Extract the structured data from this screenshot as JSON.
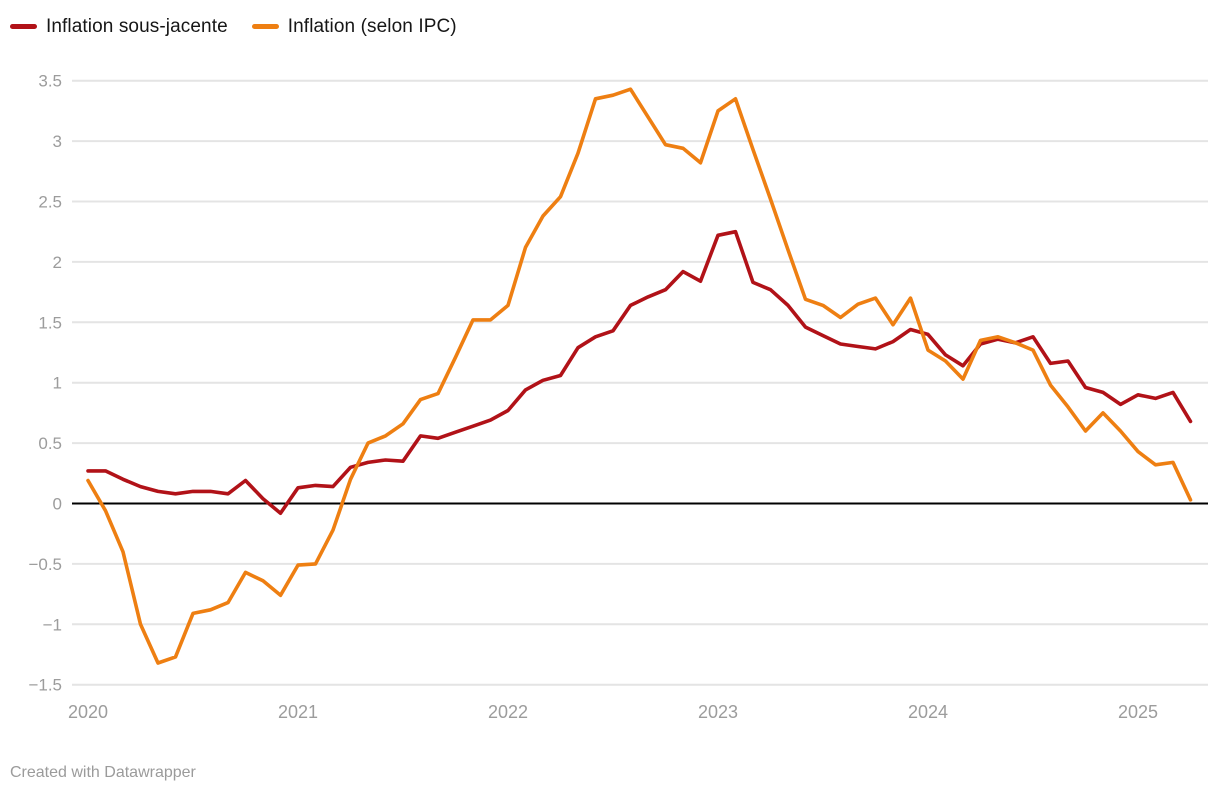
{
  "legend": [
    {
      "label": "Inflation sous-jacente",
      "color": "#B11218"
    },
    {
      "label": "Inflation (selon IPC)",
      "color": "#EE7F12"
    }
  ],
  "footer": {
    "text": "Created with Datawrapper"
  },
  "colors": {
    "grid": "#e4e4e4",
    "zero_line": "#000000",
    "tick_label": "#9c9c9c",
    "legend_text": "#161616",
    "footer_text": "#9b9b9b",
    "background": "#ffffff"
  },
  "chart_data": {
    "type": "line",
    "title": "",
    "xlabel": "",
    "ylabel": "",
    "grid": "horizontal",
    "zero_line": true,
    "legend_position": "top-left",
    "x_unit": "month",
    "x_start": "2020-01",
    "x_end": "2025-04",
    "x_tick_labels": [
      "2020",
      "2021",
      "2022",
      "2023",
      "2024",
      "2025"
    ],
    "x_tick_month_indices": [
      0,
      12,
      24,
      36,
      48,
      60
    ],
    "y_ticks": [
      3.5,
      3,
      2.5,
      2,
      1.5,
      1,
      0.5,
      0,
      -0.5,
      -1,
      -1.5
    ],
    "y_tick_labels": [
      "3.5",
      "3",
      "2.5",
      "2",
      "1.5",
      "1",
      "0.5",
      "0",
      "−0.5",
      "−1",
      "−1.5"
    ],
    "ylim": [
      -1.5,
      3.5
    ],
    "series": [
      {
        "name": "Inflation sous-jacente",
        "color": "#B11218",
        "values": [
          0.27,
          0.27,
          0.2,
          0.14,
          0.1,
          0.08,
          0.1,
          0.1,
          0.08,
          0.19,
          0.04,
          -0.08,
          0.13,
          0.15,
          0.14,
          0.3,
          0.34,
          0.36,
          0.35,
          0.56,
          0.54,
          0.59,
          0.64,
          0.69,
          0.77,
          0.94,
          1.02,
          1.06,
          1.29,
          1.38,
          1.43,
          1.64,
          1.71,
          1.77,
          1.92,
          1.84,
          2.22,
          2.25,
          1.83,
          1.77,
          1.64,
          1.46,
          1.39,
          1.32,
          1.3,
          1.28,
          1.34,
          1.44,
          1.4,
          1.23,
          1.14,
          1.32,
          1.36,
          1.33,
          1.38,
          1.16,
          1.18,
          0.96,
          0.92,
          0.82,
          0.9,
          0.87,
          0.92,
          0.68
        ]
      },
      {
        "name": "Inflation (selon IPC)",
        "color": "#EE7F12",
        "values": [
          0.19,
          -0.06,
          -0.4,
          -1.0,
          -1.32,
          -1.27,
          -0.91,
          -0.88,
          -0.82,
          -0.57,
          -0.64,
          -0.76,
          -0.51,
          -0.5,
          -0.22,
          0.2,
          0.5,
          0.56,
          0.66,
          0.86,
          0.91,
          1.21,
          1.52,
          1.52,
          1.64,
          2.12,
          2.38,
          2.54,
          2.9,
          3.35,
          3.38,
          3.43,
          3.2,
          2.97,
          2.94,
          2.82,
          3.25,
          3.35,
          2.93,
          2.52,
          2.1,
          1.69,
          1.64,
          1.54,
          1.65,
          1.7,
          1.48,
          1.7,
          1.27,
          1.18,
          1.03,
          1.35,
          1.38,
          1.33,
          1.27,
          0.98,
          0.8,
          0.6,
          0.75,
          0.6,
          0.43,
          0.32,
          0.34,
          0.03
        ]
      }
    ]
  }
}
